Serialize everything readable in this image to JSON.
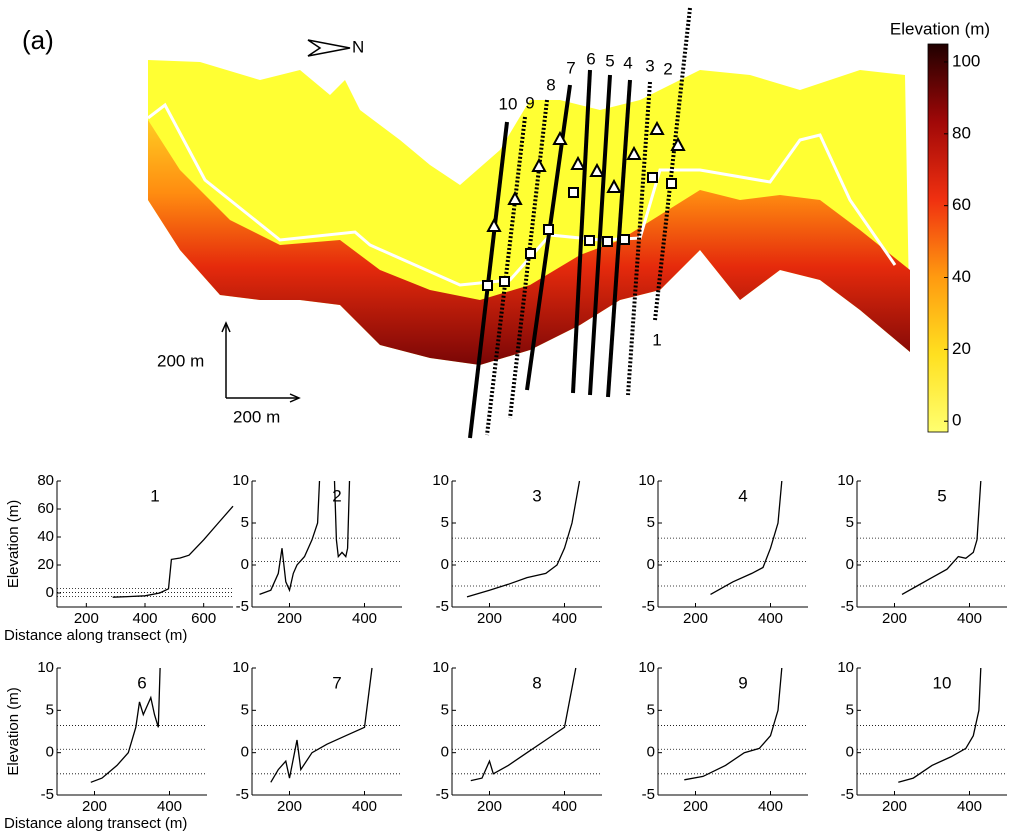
{
  "map": {
    "panel_label": "(a)",
    "north_label": "N",
    "scale_vertical": "200 m",
    "scale_horizontal": "200 m",
    "transects": [
      "1",
      "2",
      "3",
      "4",
      "5",
      "6",
      "7",
      "8",
      "9",
      "10"
    ],
    "colorbar": {
      "title": "Elevation (m)",
      "lim": [
        -3,
        105
      ],
      "ticks": [
        0,
        20,
        40,
        60,
        80,
        100
      ]
    }
  },
  "chart_data": [
    {
      "type": "line",
      "title": "1",
      "ylabel": "Elevation (m)",
      "xlabel": "Distance along transect (m)",
      "x": [
        290,
        350,
        400,
        450,
        480,
        490,
        520,
        550,
        600,
        650,
        700
      ],
      "values": [
        -3,
        -2.5,
        -2,
        0,
        3,
        24,
        25,
        27,
        38,
        50,
        62
      ],
      "xlim": [
        100,
        700
      ],
      "ylim": [
        -10,
        80
      ],
      "xticks": [
        200,
        400,
        600
      ],
      "yticks": [
        0,
        20,
        40,
        60,
        80
      ],
      "reference_lines": [
        -2.5,
        0.4,
        3.2
      ]
    },
    {
      "type": "line",
      "title": "2",
      "x": [
        120,
        150,
        170,
        180,
        190,
        200,
        210,
        220,
        240,
        260,
        275,
        280,
        300,
        320,
        325,
        330,
        340,
        350,
        355,
        360
      ],
      "values": [
        -3.5,
        -3,
        -1,
        2,
        -2,
        -3,
        -1,
        0,
        1,
        3,
        5,
        10,
        null,
        10,
        3,
        1,
        1.5,
        1,
        2,
        10
      ],
      "xlim": [
        100,
        500
      ],
      "ylim": [
        -5,
        10
      ],
      "xticks": [
        200,
        400
      ],
      "yticks": [
        -5,
        0,
        5,
        10
      ],
      "reference_lines": [
        -2.5,
        0.4,
        3.2
      ]
    },
    {
      "type": "line",
      "title": "3",
      "x": [
        140,
        200,
        250,
        300,
        350,
        380,
        400,
        420,
        440
      ],
      "values": [
        -3.8,
        -3,
        -2.3,
        -1.5,
        -1,
        0,
        2,
        5,
        10
      ],
      "xlim": [
        100,
        500
      ],
      "ylim": [
        -5,
        10
      ],
      "xticks": [
        200,
        400
      ],
      "yticks": [
        -5,
        0,
        5,
        10
      ],
      "reference_lines": [
        -2.5,
        0.4,
        3.2
      ]
    },
    {
      "type": "line",
      "title": "4",
      "x": [
        240,
        300,
        350,
        380,
        400,
        420,
        430
      ],
      "values": [
        -3.5,
        -2,
        -1,
        -0.3,
        2,
        5,
        10
      ],
      "xlim": [
        100,
        500
      ],
      "ylim": [
        -5,
        10
      ],
      "xticks": [
        200,
        400
      ],
      "yticks": [
        -5,
        0,
        5,
        10
      ],
      "reference_lines": [
        -2.5,
        0.4,
        3.2
      ]
    },
    {
      "type": "line",
      "title": "5",
      "x": [
        220,
        260,
        300,
        340,
        370,
        390,
        410,
        420,
        430
      ],
      "values": [
        -3.5,
        -2.5,
        -1.5,
        -0.5,
        1,
        0.8,
        1.5,
        3,
        10
      ],
      "xlim": [
        100,
        500
      ],
      "ylim": [
        -5,
        10
      ],
      "xticks": [
        200,
        400
      ],
      "yticks": [
        -5,
        0,
        5,
        10
      ],
      "reference_lines": [
        -2.5,
        0.4,
        3.2
      ]
    },
    {
      "type": "line",
      "title": "6",
      "ylabel": "Elevation (m)",
      "xlabel": "Distance along transect (m)",
      "x": [
        190,
        220,
        260,
        290,
        310,
        320,
        330,
        350,
        360,
        370,
        375
      ],
      "values": [
        -3.5,
        -3,
        -1.5,
        0,
        3,
        6,
        4.5,
        6.5,
        4.5,
        3,
        10
      ],
      "xlim": [
        100,
        500
      ],
      "ylim": [
        -5,
        10
      ],
      "xticks": [
        200,
        400
      ],
      "yticks": [
        -5,
        0,
        5,
        10
      ],
      "reference_lines": [
        -2.5,
        0.4,
        3.2
      ]
    },
    {
      "type": "line",
      "title": "7",
      "x": [
        150,
        170,
        190,
        200,
        220,
        230,
        260,
        300,
        350,
        400,
        420
      ],
      "values": [
        -3.5,
        -2,
        -1,
        -3,
        1.5,
        -2,
        0,
        1,
        2,
        3,
        10
      ],
      "xlim": [
        100,
        500
      ],
      "ylim": [
        -5,
        10
      ],
      "xticks": [
        200,
        400
      ],
      "yticks": [
        -5,
        0,
        5,
        10
      ],
      "reference_lines": [
        -2.5,
        0.4,
        3.2
      ]
    },
    {
      "type": "line",
      "title": "8",
      "x": [
        150,
        180,
        200,
        210,
        250,
        300,
        350,
        400,
        430
      ],
      "values": [
        -3.3,
        -3,
        -1,
        -2.5,
        -1.5,
        0,
        1.5,
        3,
        10
      ],
      "xlim": [
        100,
        500
      ],
      "ylim": [
        -5,
        10
      ],
      "xticks": [
        200,
        400
      ],
      "yticks": [
        -5,
        0,
        5,
        10
      ],
      "reference_lines": [
        -2.5,
        0.4,
        3.2
      ]
    },
    {
      "type": "line",
      "title": "9",
      "x": [
        170,
        220,
        280,
        330,
        370,
        400,
        420,
        430
      ],
      "values": [
        -3.2,
        -2.8,
        -1.5,
        0,
        0.5,
        2,
        5,
        10
      ],
      "xlim": [
        100,
        500
      ],
      "ylim": [
        -5,
        10
      ],
      "xticks": [
        200,
        400
      ],
      "yticks": [
        -5,
        0,
        5,
        10
      ],
      "reference_lines": [
        -2.5,
        0.4,
        3.2
      ]
    },
    {
      "type": "line",
      "title": "10",
      "x": [
        210,
        250,
        300,
        350,
        390,
        410,
        425,
        430
      ],
      "values": [
        -3.5,
        -3,
        -1.5,
        -0.5,
        0.5,
        2,
        5,
        10
      ],
      "xlim": [
        100,
        500
      ],
      "ylim": [
        -5,
        10
      ],
      "xticks": [
        200,
        400
      ],
      "yticks": [
        -5,
        0,
        5,
        10
      ],
      "reference_lines": [
        -2.5,
        0.4,
        3.2
      ]
    }
  ]
}
